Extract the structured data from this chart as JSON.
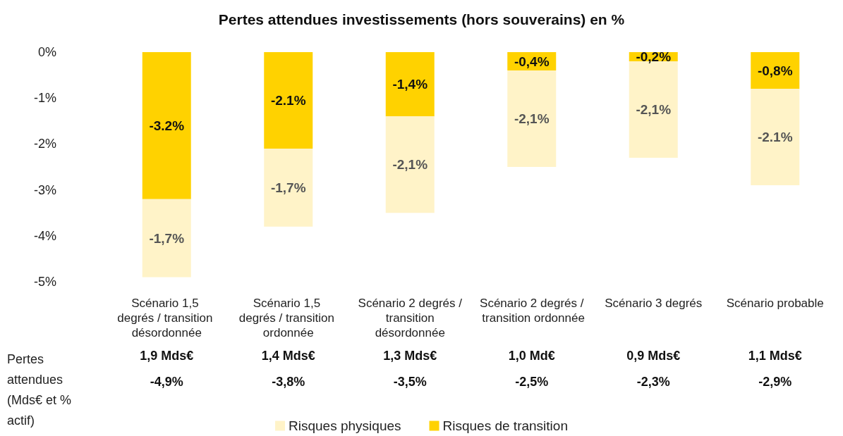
{
  "chart_data": {
    "type": "bar",
    "title": "Pertes attendues investissements (hors souverains) en %",
    "categories": [
      "Scénario 1,5 degrés / transition désordonnée",
      "Scénario 1,5 degrés / transition ordonnée",
      "Scénario 2 degrés / transition désordonnée",
      "Scénario 2 degrés / transition ordonnée",
      "Scénario 3 degrés",
      "Scénario probable"
    ],
    "stacked": true,
    "series": [
      {
        "name": "Risques de transition",
        "color": "#ffd200",
        "values": [
          -3.2,
          -2.1,
          -1.4,
          -0.4,
          -0.2,
          -0.8
        ],
        "value_labels": [
          "-3.2%",
          "-2.1%",
          "-1,4%",
          "-0,4%",
          "-0,2%",
          "-0,8%"
        ]
      },
      {
        "name": "Risques physiques",
        "color": "#fff3c8",
        "values": [
          -1.7,
          -1.7,
          -2.1,
          -2.1,
          -2.1,
          -2.1
        ],
        "value_labels": [
          "-1,7%",
          "-1,7%",
          "-2,1%",
          "-2,1%",
          "-2,1%",
          "-2.1%"
        ]
      }
    ],
    "ylim": [
      -5,
      0
    ],
    "yticks": [
      {
        "value": -5,
        "label": "-5%"
      },
      {
        "value": -4,
        "label": "-4%"
      },
      {
        "value": -3,
        "label": "-3%"
      },
      {
        "value": -2,
        "label": "-2%"
      },
      {
        "value": -1,
        "label": "-1%"
      },
      {
        "value": 0,
        "label": "0%"
      }
    ],
    "annotations": [
      "Pertes attendues (Mds€ et % actif)",
      "1,9 Mds€",
      "1,4 Mds€",
      "1,3 Mds€",
      "1,0 Md€",
      "0,9 Mds€",
      "1,1 Mds€",
      "-4,9%",
      "-3,8%",
      "-3,5%",
      "-2,5%",
      "-2,3%",
      "-2,9%"
    ],
    "grid": false,
    "legend": "bottom"
  }
}
